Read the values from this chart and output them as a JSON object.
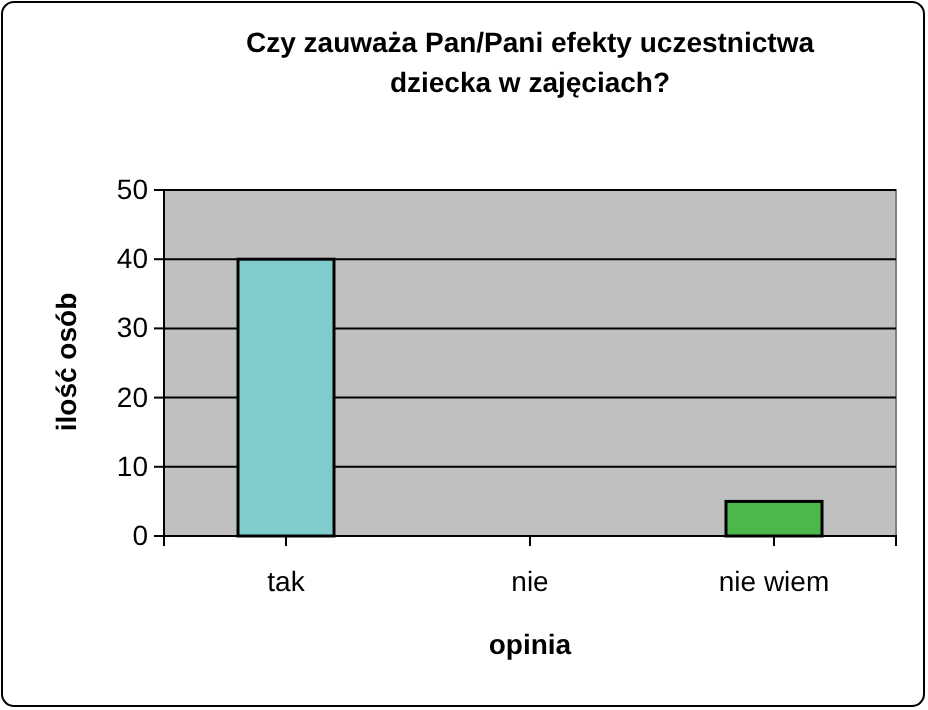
{
  "chart_data": {
    "type": "bar",
    "title": "Czy zauważa Pan/Pani efekty uczestnictwa dziecka w zajęciach?",
    "xlabel": "opinia",
    "ylabel": "ilość osób",
    "categories": [
      "tak",
      "nie",
      "nie wiem"
    ],
    "values": [
      40,
      0,
      5
    ],
    "colors": [
      "#80cccc",
      "#808080",
      "#4cb84c"
    ],
    "ylim": [
      0,
      50
    ],
    "yticks": [
      0,
      10,
      20,
      30,
      40,
      50
    ],
    "grid": "y"
  }
}
